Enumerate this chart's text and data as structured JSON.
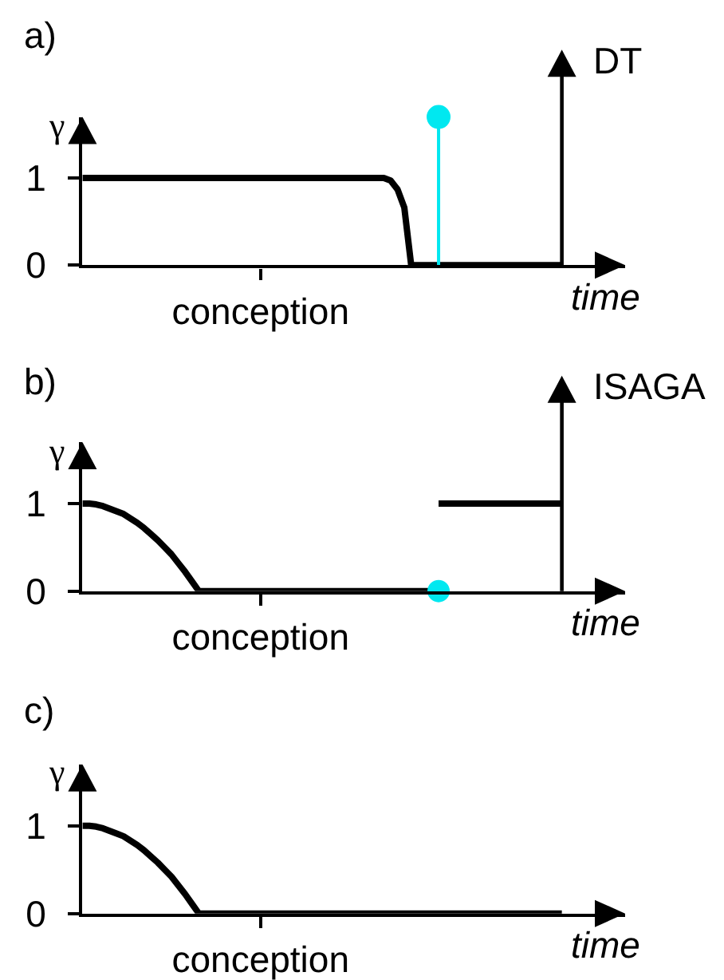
{
  "chart_data": [
    {
      "type": "line",
      "title": "a)",
      "ylabel": "γ",
      "y2label": "DT",
      "xlabel": "time",
      "ylim": [
        0,
        1.7
      ],
      "yticks": [
        0,
        1
      ],
      "categories": [
        null,
        null,
        null,
        null,
        null,
        null,
        null,
        null,
        null,
        null,
        null,
        null,
        null,
        null,
        null,
        null,
        null,
        null,
        null,
        null,
        null,
        null,
        null,
        null,
        null,
        null,
        "conception",
        null,
        null,
        null,
        null,
        null,
        null,
        null,
        null,
        null,
        null,
        null,
        null,
        null,
        null,
        null,
        null,
        null,
        null,
        null,
        null,
        null,
        null,
        null,
        null,
        null,
        null,
        null,
        null,
        null,
        null,
        null,
        null,
        null,
        null,
        null,
        null,
        null,
        null,
        null,
        null,
        null,
        null,
        null,
        null
      ],
      "series": [
        {
          "color": "#000000",
          "values": [
            1,
            1,
            1,
            1,
            1,
            1,
            1,
            1,
            1,
            1,
            1,
            1,
            1,
            1,
            1,
            1,
            1,
            1,
            1,
            1,
            1,
            1,
            1,
            1,
            1,
            1,
            1,
            1,
            1,
            1,
            1,
            1,
            1,
            1,
            1,
            1,
            1,
            1,
            1,
            1,
            1,
            1,
            1,
            1,
            1,
            0.97,
            0.87,
            0.66,
            0,
            0,
            0,
            0,
            0,
            0,
            0,
            0,
            0,
            0,
            0,
            0,
            0,
            0,
            0,
            0,
            0,
            0,
            0,
            0,
            0,
            0,
            0
          ]
        },
        {
          "type": "lollipop",
          "color": "#00e8f0",
          "values": [
            null,
            null,
            null,
            null,
            null,
            null,
            null,
            null,
            null,
            null,
            null,
            null,
            null,
            null,
            null,
            null,
            null,
            null,
            null,
            null,
            null,
            null,
            null,
            null,
            null,
            null,
            null,
            null,
            null,
            null,
            null,
            null,
            null,
            null,
            null,
            null,
            null,
            null,
            null,
            null,
            null,
            null,
            null,
            null,
            null,
            null,
            null,
            null,
            null,
            null,
            null,
            null,
            1.7,
            null,
            null,
            null,
            null,
            null,
            null,
            null,
            null,
            null,
            null,
            null,
            null,
            null,
            null,
            null,
            null,
            null,
            null
          ]
        }
      ]
    },
    {
      "type": "line",
      "title": "b)",
      "ylabel": "γ",
      "y2label": "ISAGA",
      "xlabel": "time",
      "ylim": [
        0,
        1.7
      ],
      "yticks": [
        0,
        1
      ],
      "categories": [
        null,
        null,
        null,
        null,
        null,
        null,
        null,
        null,
        null,
        null,
        null,
        null,
        null,
        null,
        null,
        null,
        null,
        null,
        null,
        null,
        null,
        null,
        null,
        null,
        null,
        null,
        "conception",
        null,
        null,
        null,
        null,
        null,
        null,
        null,
        null,
        null,
        null,
        null,
        null,
        null,
        null,
        null,
        null,
        null,
        null,
        null,
        null,
        null,
        null,
        null,
        null,
        null,
        null,
        null,
        null,
        null,
        null,
        null,
        null,
        null,
        null,
        null,
        null,
        null,
        null,
        null,
        null,
        null,
        null,
        null,
        null
      ],
      "series": [
        {
          "color": "#000000",
          "values": [
            1,
            1,
            0.99,
            0.97,
            0.94,
            0.91,
            0.88,
            0.83,
            0.78,
            0.72,
            0.65,
            0.58,
            0.5,
            0.42,
            0.32,
            0.22,
            0.11,
            0,
            0,
            0,
            0,
            0,
            0,
            0,
            0,
            0,
            0,
            0,
            0,
            0,
            0,
            0,
            0,
            0,
            0,
            0,
            0,
            0,
            0,
            0,
            0,
            0,
            0,
            0,
            0,
            0,
            0,
            0,
            0,
            0,
            0,
            0,
            0,
            null,
            null,
            null,
            null,
            null,
            null,
            null,
            null,
            null,
            null,
            null,
            null,
            null,
            null,
            null,
            null,
            null,
            null
          ]
        },
        {
          "color": "#000000",
          "values": [
            null,
            null,
            null,
            null,
            null,
            null,
            null,
            null,
            null,
            null,
            null,
            null,
            null,
            null,
            null,
            null,
            null,
            null,
            null,
            null,
            null,
            null,
            null,
            null,
            null,
            null,
            null,
            null,
            null,
            null,
            null,
            null,
            null,
            null,
            null,
            null,
            null,
            null,
            null,
            null,
            null,
            null,
            null,
            null,
            null,
            null,
            null,
            null,
            null,
            null,
            null,
            null,
            1,
            1,
            1,
            1,
            1,
            1,
            1,
            1,
            1,
            1,
            1,
            1,
            1,
            1,
            1,
            1,
            1,
            1,
            1
          ]
        },
        {
          "type": "scatter",
          "color": "#00e8f0",
          "values": [
            null,
            null,
            null,
            null,
            null,
            null,
            null,
            null,
            null,
            null,
            null,
            null,
            null,
            null,
            null,
            null,
            null,
            null,
            null,
            null,
            null,
            null,
            null,
            null,
            null,
            null,
            null,
            null,
            null,
            null,
            null,
            null,
            null,
            null,
            null,
            null,
            null,
            null,
            null,
            null,
            null,
            null,
            null,
            null,
            null,
            null,
            null,
            null,
            null,
            null,
            null,
            null,
            0,
            null,
            null,
            null,
            null,
            null,
            null,
            null,
            null,
            null,
            null,
            null,
            null,
            null,
            null,
            null,
            null,
            null,
            null
          ]
        }
      ]
    },
    {
      "type": "line",
      "title": "c)",
      "ylabel": "γ",
      "xlabel": "time",
      "ylim": [
        0,
        1.7
      ],
      "yticks": [
        0,
        1
      ],
      "categories": [
        null,
        null,
        null,
        null,
        null,
        null,
        null,
        null,
        null,
        null,
        null,
        null,
        null,
        null,
        null,
        null,
        null,
        null,
        null,
        null,
        null,
        null,
        null,
        null,
        null,
        null,
        "conception",
        null,
        null,
        null,
        null,
        null,
        null,
        null,
        null,
        null,
        null,
        null,
        null,
        null,
        null,
        null,
        null,
        null,
        null,
        null,
        null,
        null,
        null,
        null,
        null,
        null,
        null,
        null,
        null,
        null,
        null,
        null,
        null,
        null,
        null,
        null,
        null,
        null,
        null,
        null,
        null,
        null,
        null,
        null,
        null
      ],
      "series": [
        {
          "color": "#000000",
          "values": [
            1,
            1,
            0.99,
            0.97,
            0.94,
            0.91,
            0.88,
            0.83,
            0.78,
            0.72,
            0.65,
            0.58,
            0.5,
            0.42,
            0.32,
            0.22,
            0.11,
            0,
            0,
            0,
            0,
            0,
            0,
            0,
            0,
            0,
            0,
            0,
            0,
            0,
            0,
            0,
            0,
            0,
            0,
            0,
            0,
            0,
            0,
            0,
            0,
            0,
            0,
            0,
            0,
            0,
            0,
            0,
            0,
            0,
            0,
            0,
            0,
            0,
            0,
            0,
            0,
            0,
            0,
            0,
            0,
            0,
            0,
            0,
            0,
            0,
            0,
            0,
            0,
            0,
            0
          ]
        }
      ]
    }
  ]
}
